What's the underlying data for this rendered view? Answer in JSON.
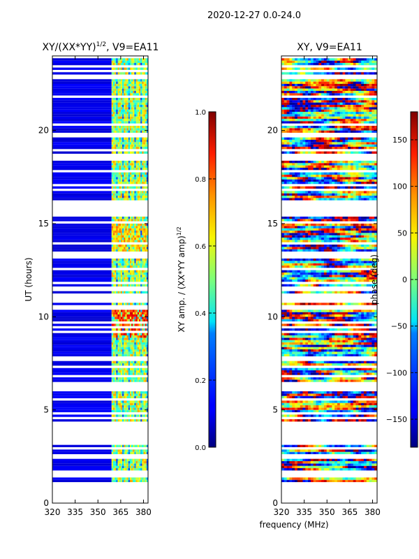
{
  "suptitle": "2020-12-27 0.0-24.0",
  "figure_xlabel": "frequency (MHz)",
  "chart_data": [
    {
      "type": "heatmap",
      "title": "XY/(XX*YY)^1/2, V9=EA11",
      "title_main": "XY/(XX*YY)",
      "title_sup": "1/2",
      "title_tail": ", V9=EA11",
      "xlabel": "",
      "ylabel": "UT (hours)",
      "xlim": [
        320,
        383
      ],
      "ylim": [
        0,
        24
      ],
      "xticks": [
        320,
        335,
        350,
        365,
        380
      ],
      "yticks": [
        0,
        5,
        10,
        15,
        20
      ],
      "colorbar": {
        "label_main": "XY amp. / (XX*YY amp)",
        "label_sup": "1/2",
        "range": [
          0.0,
          1.0
        ],
        "ticks": [
          "0.0",
          "0.2",
          "0.4",
          "0.6",
          "0.8",
          "1.0"
        ],
        "colormap": "jet"
      },
      "low_band_value": 0.08,
      "high_band_mhz": [
        359,
        383
      ],
      "high_band_value": 0.55,
      "hot_spots": [
        {
          "ut": [
            8.8,
            10.5
          ],
          "value": 0.8
        },
        {
          "ut": [
            13.5,
            15.2
          ],
          "value": 0.65
        }
      ]
    },
    {
      "type": "heatmap",
      "title": "XY, V9=EA11",
      "xlabel": "",
      "ylabel": "",
      "xlim": [
        320,
        383
      ],
      "ylim": [
        0,
        24
      ],
      "xticks": [
        320,
        335,
        350,
        365,
        380
      ],
      "yticks": [
        0,
        5,
        10,
        15,
        20
      ],
      "colorbar": {
        "label": "phase (deg)",
        "range": [
          -180,
          180
        ],
        "ticks": [
          "150",
          "100",
          "50",
          "0",
          "−50",
          "−100",
          "−150"
        ],
        "colormap": "jet"
      }
    }
  ],
  "data_coverage_ut": [
    1.0,
    24.0
  ],
  "gaps_ut": [
    [
      3.1,
      3.9
    ],
    [
      5.9,
      6.5
    ],
    [
      15.6,
      16.2
    ],
    [
      10.9,
      11.2
    ],
    [
      13.1,
      13.5
    ]
  ],
  "colors": {
    "frame": "#000000",
    "background": "#ffffff"
  }
}
